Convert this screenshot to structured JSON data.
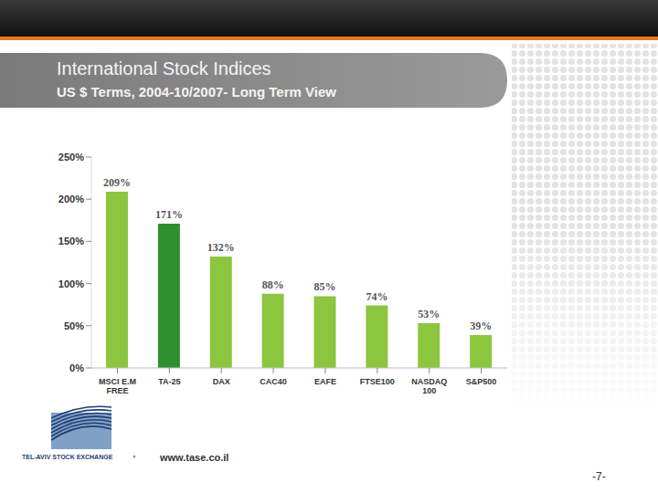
{
  "chart_data": {
    "type": "bar",
    "title": "International Stock Indices",
    "subtitle": "US $ Terms, 2004-10/2007- Long Term View",
    "categories": [
      "MSCI E.M FREE",
      "TA-25",
      "DAX",
      "CAC40",
      "EAFE",
      "FTSE100",
      "NASDAQ 100",
      "S&P500"
    ],
    "values": [
      209,
      171,
      132,
      88,
      85,
      74,
      53,
      39
    ],
    "value_labels": [
      "209%",
      "171%",
      "132%",
      "88%",
      "85%",
      "74%",
      "53%",
      "39%"
    ],
    "colors": [
      "#8cc63f",
      "#2f8f2f",
      "#8cc63f",
      "#8cc63f",
      "#8cc63f",
      "#8cc63f",
      "#8cc63f",
      "#8cc63f"
    ],
    "ylim": [
      0,
      250
    ],
    "yticks": [
      {
        "value": 0,
        "label": "0%"
      },
      {
        "value": 50,
        "label": "50%"
      },
      {
        "value": 100,
        "label": "100%"
      },
      {
        "value": 150,
        "label": "150%"
      },
      {
        "value": 200,
        "label": "200%"
      },
      {
        "value": 250,
        "label": "250%"
      }
    ],
    "data_labels": true,
    "grid": false
  },
  "footer": {
    "organization": "TEL-AVIV STOCK EXCHANGE",
    "url": "www.tase.co.il",
    "page": "-7-"
  }
}
